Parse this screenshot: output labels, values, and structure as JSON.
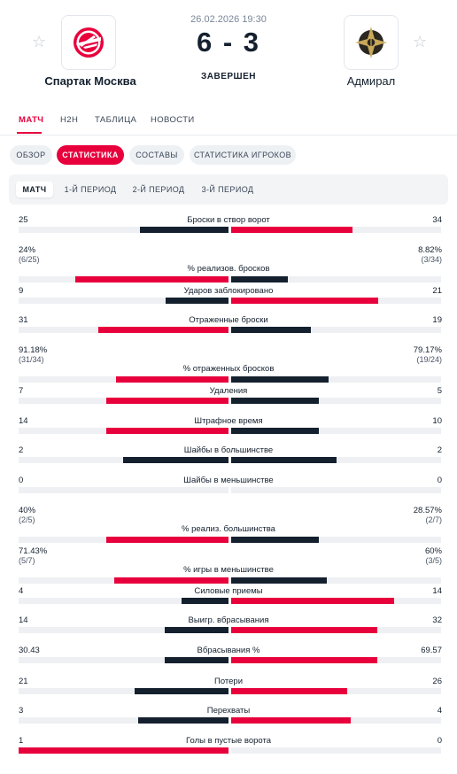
{
  "match": {
    "datetime": "26.02.2026 19:30",
    "score": "6 - 3",
    "status": "ЗАВЕРШЕН",
    "home": {
      "name": "Спартак Москва"
    },
    "away": {
      "name": "Адмирал"
    }
  },
  "colors": {
    "accent": "#e8003c",
    "dark": "#14202e",
    "track": "#eef0f3"
  },
  "main_tabs": [
    {
      "label": "МАТЧ",
      "active": true
    },
    {
      "label": "H2H",
      "active": false
    },
    {
      "label": "ТАБЛИЦА",
      "active": false
    },
    {
      "label": "НОВОСТИ",
      "active": false
    }
  ],
  "sub_tabs": [
    {
      "label": "ОБЗОР",
      "active": false
    },
    {
      "label": "СТАТИСТИКА",
      "active": true
    },
    {
      "label": "СОСТАВЫ",
      "active": false
    },
    {
      "label": "СТАТИСТИКА ИГРОКОВ",
      "active": false
    }
  ],
  "periods": [
    {
      "label": "МАТЧ",
      "active": true
    },
    {
      "label": "1-Й ПЕРИОД",
      "active": false
    },
    {
      "label": "2-Й ПЕРИОД",
      "active": false
    },
    {
      "label": "3-Й ПЕРИОД",
      "active": false
    }
  ],
  "stats": [
    {
      "name": "Броски в створ ворот",
      "home": "25",
      "away": "34",
      "home_share": 0.424,
      "away_share": 0.576,
      "leader": "away"
    },
    {
      "name": "% реализов. бросков",
      "home": "24%",
      "away": "8.82%",
      "home_sub": "(6/25)",
      "away_sub": "(3/34)",
      "home_share": 0.731,
      "away_share": 0.269,
      "leader": "home"
    },
    {
      "name": "Ударов заблокировано",
      "home": "9",
      "away": "21",
      "home_share": 0.3,
      "away_share": 0.7,
      "leader": "away"
    },
    {
      "name": "Отраженные броски",
      "home": "31",
      "away": "19",
      "home_share": 0.62,
      "away_share": 0.38,
      "leader": "home"
    },
    {
      "name": "% отраженных бросков",
      "home": "91.18%",
      "away": "79.17%",
      "home_sub": "(31/34)",
      "away_sub": "(19/24)",
      "home_share": 0.535,
      "away_share": 0.465,
      "leader": "home"
    },
    {
      "name": "Удаления",
      "home": "7",
      "away": "5",
      "home_share": 0.583,
      "away_share": 0.417,
      "leader": "home"
    },
    {
      "name": "Штрафное время",
      "home": "14",
      "away": "10",
      "home_share": 0.583,
      "away_share": 0.417,
      "leader": "home"
    },
    {
      "name": "Шайбы в большинстве",
      "home": "2",
      "away": "2",
      "home_share": 0.5,
      "away_share": 0.5,
      "leader": "none"
    },
    {
      "name": "Шайбы в меньшинстве",
      "home": "0",
      "away": "0",
      "home_share": 0,
      "away_share": 0,
      "leader": "none"
    },
    {
      "name": "% реализ. большинства",
      "home": "40%",
      "away": "28.57%",
      "home_sub": "(2/5)",
      "away_sub": "(2/7)",
      "home_share": 0.583,
      "away_share": 0.417,
      "leader": "home"
    },
    {
      "name": "% игры в меньшинстве",
      "home": "71.43%",
      "away": "60%",
      "home_sub": "(5/7)",
      "away_sub": "(3/5)",
      "home_share": 0.543,
      "away_share": 0.457,
      "leader": "home"
    },
    {
      "name": "Силовые приемы",
      "home": "4",
      "away": "14",
      "home_share": 0.222,
      "away_share": 0.778,
      "leader": "away"
    },
    {
      "name": "Выигр. вбрасывания",
      "home": "14",
      "away": "32",
      "home_share": 0.304,
      "away_share": 0.696,
      "leader": "away"
    },
    {
      "name": "Вбрасывания %",
      "home": "30.43",
      "away": "69.57",
      "home_share": 0.3043,
      "away_share": 0.6957,
      "leader": "away"
    },
    {
      "name": "Потери",
      "home": "21",
      "away": "26",
      "home_share": 0.447,
      "away_share": 0.553,
      "leader": "away"
    },
    {
      "name": "Перехваты",
      "home": "3",
      "away": "4",
      "home_share": 0.429,
      "away_share": 0.571,
      "leader": "away"
    },
    {
      "name": "Голы в пустые ворота",
      "home": "1",
      "away": "0",
      "home_share": 1,
      "away_share": 0,
      "leader": "home"
    }
  ]
}
